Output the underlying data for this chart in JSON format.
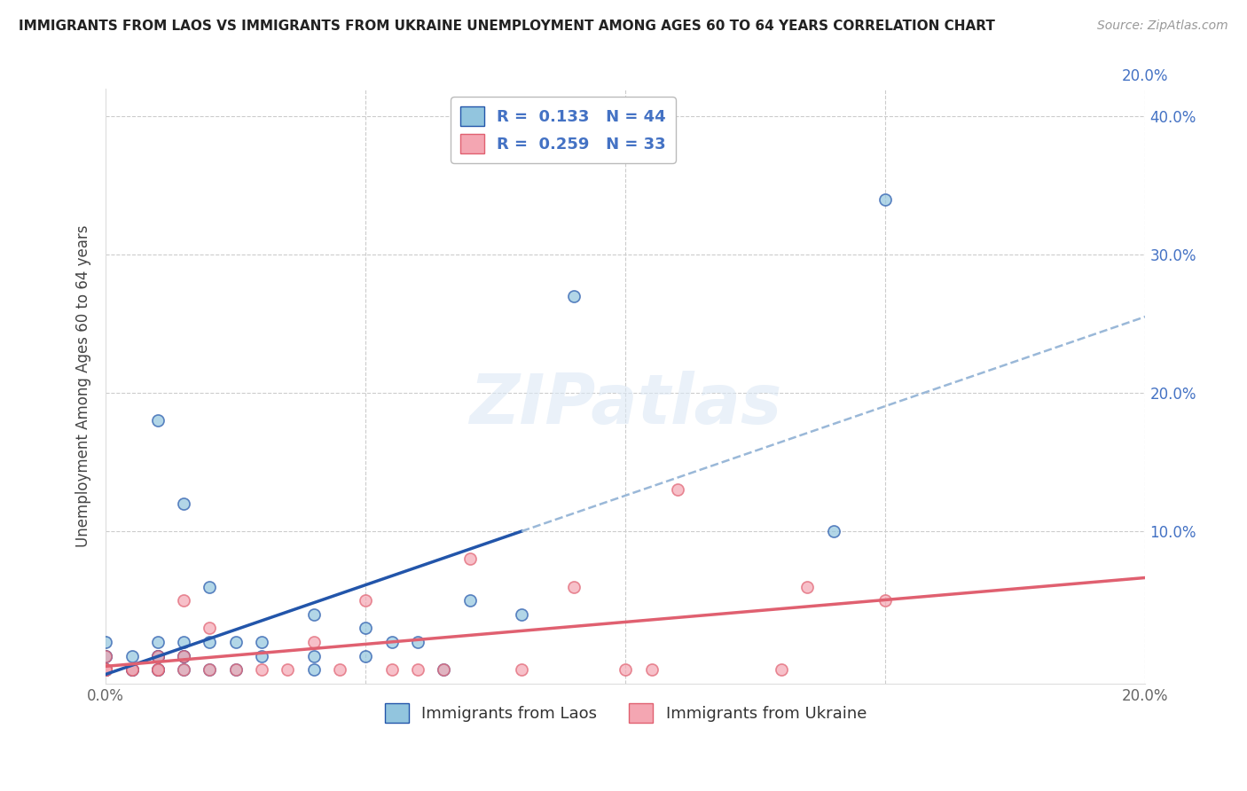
{
  "title": "IMMIGRANTS FROM LAOS VS IMMIGRANTS FROM UKRAINE UNEMPLOYMENT AMONG AGES 60 TO 64 YEARS CORRELATION CHART",
  "source": "Source: ZipAtlas.com",
  "ylabel": "Unemployment Among Ages 60 to 64 years",
  "xlim": [
    0.0,
    0.2
  ],
  "ylim": [
    -0.01,
    0.42
  ],
  "yticks": [
    0.0,
    0.1,
    0.2,
    0.3,
    0.4
  ],
  "yticklabels_right": [
    "",
    "10.0%",
    "20.0%",
    "30.0%",
    "40.0%"
  ],
  "xticks": [
    0.0,
    0.05,
    0.1,
    0.15,
    0.2
  ],
  "xticklabels": [
    "0.0%",
    "",
    "",
    "",
    "20.0%"
  ],
  "legend_r1": "R =  0.133",
  "legend_n1": "N = 44",
  "legend_r2": "R =  0.259",
  "legend_n2": "N = 33",
  "color_laos": "#92C5DE",
  "color_ukraine": "#F4A6B2",
  "trendline_laos_color": "#2255AA",
  "trendline_ukraine_color": "#E06070",
  "trendline_laos_dash_color": "#9ab8d8",
  "legend_text_color": "#4472C4",
  "background_color": "#ffffff",
  "grid_color": "#cccccc",
  "laos_x": [
    0.0,
    0.0,
    0.0,
    0.0,
    0.0,
    0.0,
    0.0,
    0.005,
    0.005,
    0.005,
    0.005,
    0.01,
    0.01,
    0.01,
    0.01,
    0.01,
    0.01,
    0.01,
    0.01,
    0.015,
    0.015,
    0.015,
    0.015,
    0.015,
    0.02,
    0.02,
    0.02,
    0.025,
    0.025,
    0.03,
    0.03,
    0.04,
    0.04,
    0.04,
    0.05,
    0.05,
    0.055,
    0.06,
    0.065,
    0.07,
    0.08,
    0.09,
    0.14,
    0.15
  ],
  "laos_y": [
    0.0,
    0.0,
    0.0,
    0.0,
    0.01,
    0.01,
    0.02,
    0.0,
    0.0,
    0.0,
    0.01,
    0.0,
    0.0,
    0.0,
    0.01,
    0.01,
    0.01,
    0.02,
    0.18,
    0.0,
    0.01,
    0.01,
    0.02,
    0.12,
    0.0,
    0.02,
    0.06,
    0.0,
    0.02,
    0.01,
    0.02,
    0.0,
    0.01,
    0.04,
    0.01,
    0.03,
    0.02,
    0.02,
    0.0,
    0.05,
    0.04,
    0.27,
    0.1,
    0.34
  ],
  "ukraine_x": [
    0.0,
    0.0,
    0.0,
    0.0,
    0.0,
    0.005,
    0.005,
    0.01,
    0.01,
    0.01,
    0.015,
    0.015,
    0.015,
    0.02,
    0.02,
    0.025,
    0.03,
    0.035,
    0.04,
    0.045,
    0.05,
    0.055,
    0.06,
    0.065,
    0.07,
    0.08,
    0.09,
    0.1,
    0.105,
    0.11,
    0.13,
    0.135,
    0.15
  ],
  "ukraine_y": [
    0.0,
    0.0,
    0.0,
    0.0,
    0.01,
    0.0,
    0.0,
    0.0,
    0.0,
    0.01,
    0.0,
    0.01,
    0.05,
    0.0,
    0.03,
    0.0,
    0.0,
    0.0,
    0.02,
    0.0,
    0.05,
    0.0,
    0.0,
    0.0,
    0.08,
    0.0,
    0.06,
    0.0,
    0.0,
    0.13,
    0.0,
    0.06,
    0.05
  ],
  "trendline_laos_x0": 0.0,
  "trendline_laos_x_solid_end": 0.08,
  "trendline_laos_x1": 0.2,
  "trendline_ukraine_x0": 0.0,
  "trendline_ukraine_x1": 0.2
}
